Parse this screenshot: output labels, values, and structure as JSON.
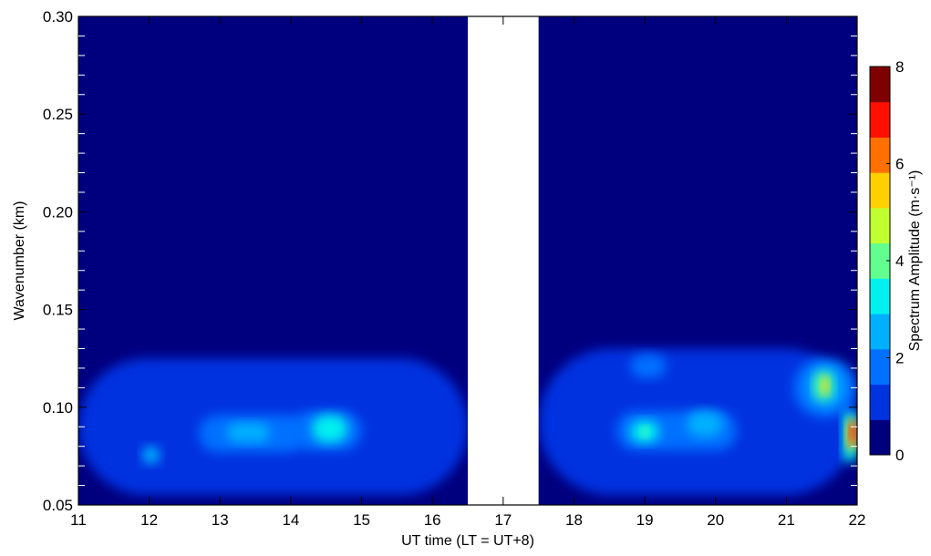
{
  "chart_data": {
    "type": "heatmap",
    "title": "",
    "xlabel": "UT time (LT = UT+8)",
    "ylabel": "Wavenumber (km)",
    "xlim": [
      11,
      22
    ],
    "ylim": [
      0.05,
      0.3
    ],
    "x_ticks": [
      11,
      12,
      13,
      14,
      15,
      16,
      17,
      18,
      19,
      20,
      21,
      22
    ],
    "x_tick_labels": [
      "11",
      "12",
      "13",
      "14",
      "15",
      "16",
      "17",
      "18",
      "19",
      "20",
      "21",
      "22"
    ],
    "y_ticks": [
      0.05,
      0.1,
      0.15,
      0.2,
      0.25,
      0.3
    ],
    "y_tick_labels": [
      "0.05",
      "0.10",
      "0.15",
      "0.20",
      "0.25",
      "0.30"
    ],
    "data_gap": [
      16.5,
      17.5
    ],
    "grid": false,
    "colorbar": {
      "label": "Spectrum Amplitude (m·s⁻¹)",
      "range": [
        0,
        8
      ],
      "tick_values": [
        0,
        2,
        4,
        6,
        8
      ],
      "tick_labels": [
        "0",
        "2",
        "4",
        "6",
        "8"
      ],
      "levels": [
        0,
        0.8,
        1.6,
        2.4,
        3.2,
        4.0,
        4.8,
        5.6,
        6.4,
        7.2,
        8.0
      ],
      "colors": [
        "#00007f",
        "#0033e0",
        "#0070ff",
        "#00b0ff",
        "#00f0f0",
        "#60ff90",
        "#c0ff30",
        "#ffd000",
        "#ff7000",
        "#ff1000",
        "#7f0000"
      ]
    },
    "features": [
      {
        "x": [
          11,
          16.5
        ],
        "y": [
          0.055,
          0.125
        ],
        "level": 1
      },
      {
        "x": [
          17.5,
          22
        ],
        "y": [
          0.055,
          0.13
        ],
        "level": 1
      },
      {
        "x": [
          12.7,
          14.2
        ],
        "y": [
          0.077,
          0.096
        ],
        "level": 2
      },
      {
        "x": [
          14.0,
          15.0
        ],
        "y": [
          0.078,
          0.098
        ],
        "level": 2
      },
      {
        "x": [
          11.9,
          12.15
        ],
        "y": [
          0.071,
          0.08
        ],
        "level": 3
      },
      {
        "x": [
          13.1,
          13.7
        ],
        "y": [
          0.082,
          0.092
        ],
        "level": 3
      },
      {
        "x": [
          14.3,
          14.8
        ],
        "y": [
          0.082,
          0.096
        ],
        "level": 4
      },
      {
        "x": [
          18.6,
          20.3
        ],
        "y": [
          0.078,
          0.098
        ],
        "level": 2
      },
      {
        "x": [
          18.8,
          19.2
        ],
        "y": [
          0.082,
          0.093
        ],
        "level": 4
      },
      {
        "x": [
          18.95,
          19.05
        ],
        "y": [
          0.085,
          0.09
        ],
        "level": 5
      },
      {
        "x": [
          19.6,
          20.1
        ],
        "y": [
          0.085,
          0.098
        ],
        "level": 3
      },
      {
        "x": [
          18.8,
          19.3
        ],
        "y": [
          0.115,
          0.127
        ],
        "level": 2
      },
      {
        "x": [
          21.1,
          22
        ],
        "y": [
          0.095,
          0.125
        ],
        "level": 2
      },
      {
        "x": [
          21.3,
          21.8
        ],
        "y": [
          0.1,
          0.121
        ],
        "level": 3
      },
      {
        "x": [
          21.4,
          21.65
        ],
        "y": [
          0.104,
          0.118
        ],
        "level": 5
      },
      {
        "x": [
          21.5,
          21.6
        ],
        "y": [
          0.107,
          0.115
        ],
        "level": 7
      },
      {
        "x": [
          21.8,
          22
        ],
        "y": [
          0.072,
          0.098
        ],
        "level": 4
      },
      {
        "x": [
          21.85,
          22
        ],
        "y": [
          0.078,
          0.094
        ],
        "level": 7
      },
      {
        "x": [
          21.9,
          22
        ],
        "y": [
          0.082,
          0.092
        ],
        "level": 9
      }
    ]
  }
}
